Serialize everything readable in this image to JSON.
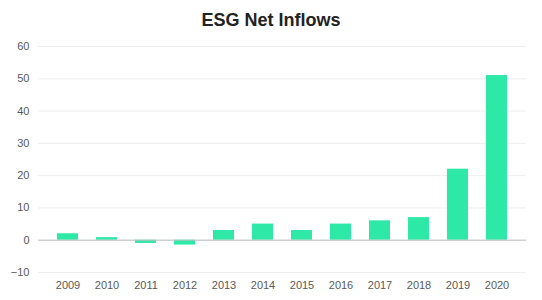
{
  "chart_data": {
    "type": "bar",
    "title": "ESG Net Inflows",
    "categories": [
      "2009",
      "2010",
      "2011",
      "2012",
      "2013",
      "2014",
      "2015",
      "2016",
      "2017",
      "2018",
      "2019",
      "2020"
    ],
    "values": [
      2,
      0.8,
      -1,
      -1.5,
      3,
      5,
      3,
      5,
      6,
      7,
      22,
      51
    ],
    "color": "#2ee8a8",
    "ylim": [
      -10,
      60
    ],
    "yticks": [
      -10,
      0,
      10,
      20,
      30,
      40,
      50,
      60
    ],
    "grid": true
  }
}
